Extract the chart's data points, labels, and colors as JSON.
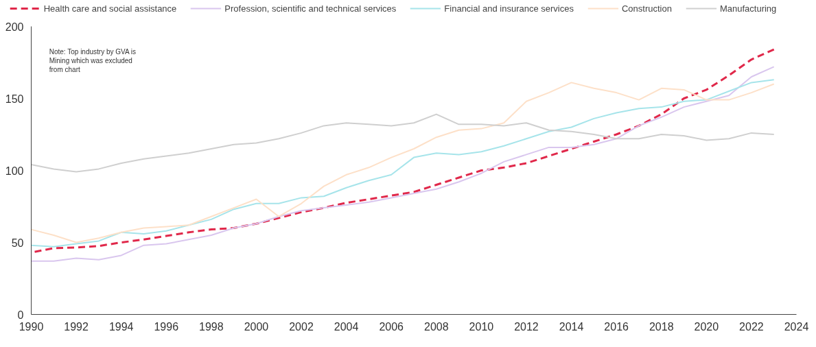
{
  "chart_data": {
    "type": "line",
    "x": [
      1990,
      1991,
      1992,
      1993,
      1994,
      1995,
      1996,
      1997,
      1998,
      1999,
      2000,
      2001,
      2002,
      2003,
      2004,
      2005,
      2006,
      2007,
      2008,
      2009,
      2010,
      2011,
      2012,
      2013,
      2014,
      2015,
      2016,
      2017,
      2018,
      2019,
      2020,
      2021,
      2022,
      2023
    ],
    "series": [
      {
        "name": "Health care and social assistance",
        "color": "#e0284a",
        "line_style": "dashed",
        "values": [
          43,
          46,
          46.5,
          47.5,
          50,
          52,
          54.5,
          57,
          59,
          60,
          63,
          67,
          71,
          74,
          77.5,
          80,
          82.5,
          85,
          90,
          95,
          100,
          102,
          105,
          110,
          115,
          120,
          125,
          131,
          139,
          150,
          156,
          166,
          177,
          184
        ]
      },
      {
        "name": "Profession, scientific and technical services",
        "color": "#d9c6ee",
        "values": [
          37,
          37,
          39,
          38,
          41,
          48,
          49,
          52,
          55,
          60,
          63,
          68,
          72,
          74,
          76,
          78,
          81,
          84,
          87,
          92,
          98,
          106,
          111,
          116,
          116,
          118,
          122,
          131,
          137,
          144,
          148,
          152,
          165,
          172
        ]
      },
      {
        "name": "Financial and insurance services",
        "color": "#a6e4ea",
        "values": [
          48,
          47,
          49,
          51,
          57,
          56,
          58,
          62,
          66,
          73,
          77,
          77,
          81,
          82,
          88,
          93,
          97,
          109,
          112,
          111,
          113,
          117,
          122,
          127,
          130,
          136,
          140,
          143,
          144,
          148,
          149,
          155,
          161,
          163
        ]
      },
      {
        "name": "Construction",
        "color": "#fde0c8",
        "values": [
          59,
          55,
          50,
          53,
          57,
          60,
          61,
          62,
          68,
          74,
          80,
          68,
          77,
          89,
          97,
          102,
          109,
          115,
          123,
          128,
          129,
          133,
          148,
          154,
          161,
          157,
          154,
          149,
          157,
          156,
          149,
          149,
          154,
          160
        ]
      },
      {
        "name": "Manufacturing",
        "color": "#cfcfcf",
        "values": [
          104,
          101,
          99,
          101,
          105,
          108,
          110,
          112,
          115,
          118,
          119,
          122,
          126,
          131,
          133,
          132,
          131,
          133,
          139,
          132,
          132,
          131,
          133,
          128,
          127,
          125,
          122,
          122,
          125,
          124,
          121,
          122,
          126,
          125
        ]
      }
    ],
    "xlim": [
      1990,
      2024
    ],
    "xticks": [
      1990,
      1992,
      1994,
      1996,
      1998,
      2000,
      2002,
      2004,
      2006,
      2008,
      2010,
      2012,
      2014,
      2016,
      2018,
      2020,
      2022,
      2024
    ],
    "ylim": [
      0,
      200
    ],
    "yticks": [
      0,
      50,
      100,
      150,
      200
    ],
    "grid": false,
    "legend": "top",
    "line_style": "solid",
    "marker": "none",
    "annotations": [
      "Note: Top industry by GVA is\nMining which was excluded\nfrom chart"
    ]
  }
}
